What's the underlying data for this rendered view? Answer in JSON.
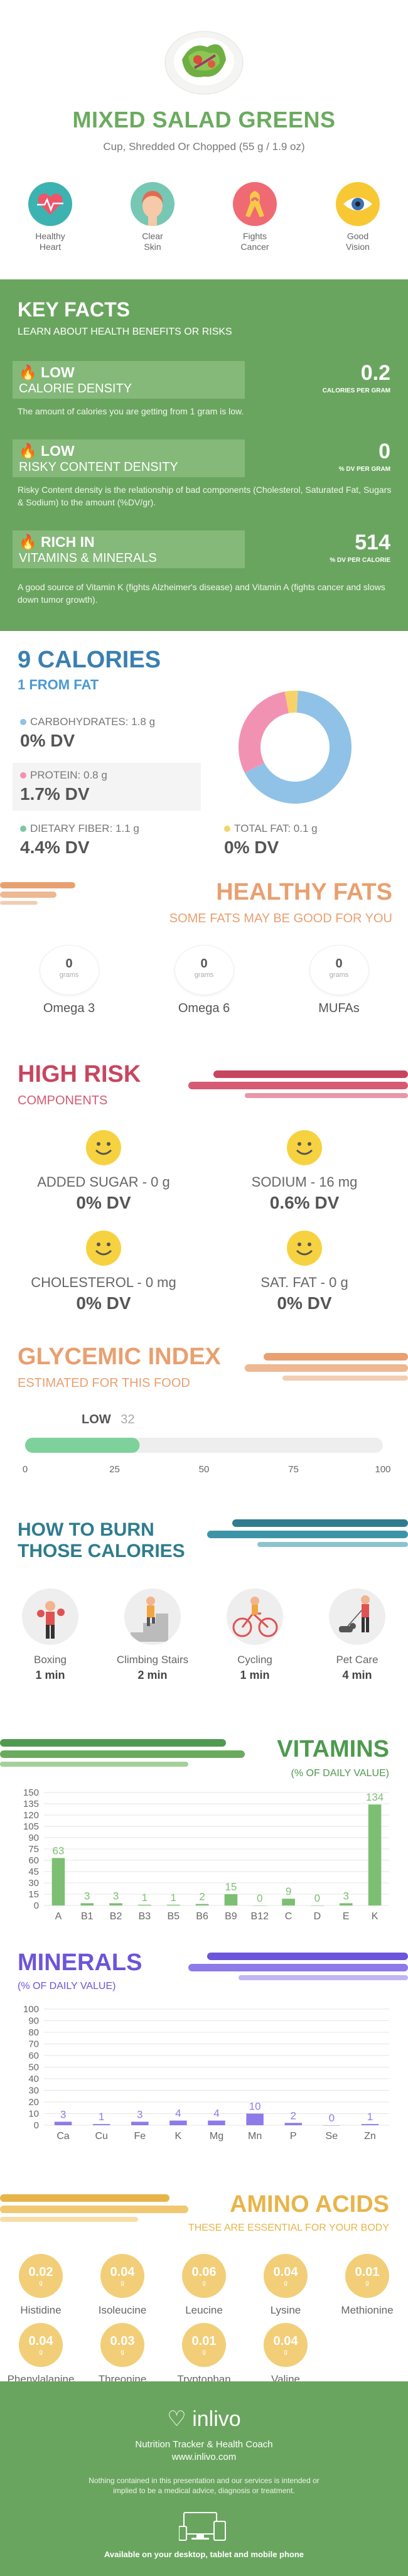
{
  "header": {
    "title": "MIXED SALAD GREENS",
    "subtitle": "Cup, Shredded Or Chopped (55 g / 1.9 oz)"
  },
  "benefits": [
    {
      "line1": "Healthy",
      "line2": "Heart",
      "icon": "heart-pulse-icon",
      "color": "#3cb3b0"
    },
    {
      "line1": "Clear",
      "line2": "Skin",
      "icon": "face-icon",
      "color": "#76c7b3"
    },
    {
      "line1": "Fights",
      "line2": "Cancer",
      "icon": "ribbon-icon",
      "color": "#f06a73"
    },
    {
      "line1": "Good",
      "line2": "Vision",
      "icon": "eye-icon",
      "color": "#f7c833"
    }
  ],
  "key_facts": {
    "title": "KEY FACTS",
    "subtitle": "LEARN ABOUT HEALTH BENEFITS OR RISKS",
    "items": [
      {
        "level": "LOW",
        "name": "CALORIE DENSITY",
        "value": "0.2",
        "value_label": "CALORIES PER GRAM",
        "desc": "The amount of calories you are getting from 1 gram is low."
      },
      {
        "level": "LOW",
        "name": "RISKY CONTENT DENSITY",
        "value": "0",
        "value_label": "% DV PER GRAM",
        "desc": "Risky Content density is the relationship of bad components (Cholesterol, Saturated Fat, Sugars & Sodium) to the amount (%DV/gr)."
      },
      {
        "level": "RICH IN",
        "name": "VITAMINS & MINERALS",
        "value": "514",
        "value_label": "% DV PER CALORIE",
        "desc": "A good source of Vitamin K (fights Alzheimer's disease) and Vitamin A (fights cancer and slows down tumor growth)."
      }
    ]
  },
  "calories": {
    "title": "9 CALORIES",
    "subtitle": "1 FROM FAT",
    "nutrients": [
      {
        "label": "CARBOHYDRATES: 1.8 g",
        "dv": "0% DV",
        "color": "#8fc2e6"
      },
      {
        "label": "PROTEIN: 0.8 g",
        "dv": "1.7% DV",
        "color": "#f292b3"
      },
      {
        "label": "DIETARY FIBER: 1.1 g",
        "dv": "4.4% DV",
        "color": "#7cc6a4"
      },
      {
        "label": "TOTAL FAT: 0.1 g",
        "dv": "0% DV",
        "color": "#f6d36a"
      }
    ],
    "donut": [
      {
        "name": "carbohydrates",
        "value": 1.8,
        "color": "#8fc2e6"
      },
      {
        "name": "protein",
        "value": 0.8,
        "color": "#f292b3"
      },
      {
        "name": "fat",
        "value": 0.1,
        "color": "#f6d36a"
      }
    ]
  },
  "healthy_fats": {
    "title": "HEALTHY FATS",
    "subtitle": "SOME FATS MAY BE GOOD FOR YOU",
    "unit": "grams",
    "items": [
      {
        "name": "Omega 3",
        "value": "0"
      },
      {
        "name": "Omega 6",
        "value": "0"
      },
      {
        "name": "MUFAs",
        "value": "0"
      }
    ]
  },
  "high_risk": {
    "title": "HIGH RISK",
    "subtitle": "COMPONENTS",
    "items": [
      {
        "label": "ADDED SUGAR - 0 g",
        "dv": "0% DV"
      },
      {
        "label": "SODIUM - 16 mg",
        "dv": "0.6% DV"
      },
      {
        "label": "CHOLESTEROL - 0 mg",
        "dv": "0% DV"
      },
      {
        "label": "SAT. FAT - 0 g",
        "dv": "0% DV"
      }
    ]
  },
  "glycemic": {
    "title": "GLYCEMIC INDEX",
    "subtitle": "ESTIMATED FOR THIS FOOD",
    "level": "LOW",
    "value": 32,
    "value_text": "32",
    "ticks": [
      "0",
      "25",
      "50",
      "75",
      "100"
    ]
  },
  "burn": {
    "title_line1": "HOW TO BURN",
    "title_line2": "THOSE CALORIES",
    "activities": [
      {
        "name": "Boxing",
        "time": "1 min",
        "icon": "boxing-icon"
      },
      {
        "name": "Climbing Stairs",
        "time": "2 min",
        "icon": "stairs-icon"
      },
      {
        "name": "Cycling",
        "time": "1 min",
        "icon": "bicycle-icon"
      },
      {
        "name": "Pet Care",
        "time": "4 min",
        "icon": "dog-walking-icon"
      }
    ]
  },
  "vitamins": {
    "title": "VITAMINS",
    "subtitle": "(% OF DAILY VALUE)"
  },
  "minerals": {
    "title": "MINERALS",
    "subtitle": "(% OF DAILY VALUE)"
  },
  "amino": {
    "title": "AMINO ACIDS",
    "subtitle": "THESE ARE ESSENTIAL FOR YOUR BODY",
    "unit": "g",
    "items": [
      {
        "name": "Histidine",
        "value": "0.02"
      },
      {
        "name": "Isoleucine",
        "value": "0.04"
      },
      {
        "name": "Leucine",
        "value": "0.06"
      },
      {
        "name": "Lysine",
        "value": "0.04"
      },
      {
        "name": "Methionine",
        "value": "0.01"
      },
      {
        "name": "Phenylalanine",
        "value": "0.04"
      },
      {
        "name": "Threonine",
        "value": "0.03"
      },
      {
        "name": "Tryptophan",
        "value": "0.01"
      },
      {
        "name": "Valine",
        "value": "0.04"
      }
    ]
  },
  "footer": {
    "brand": "inlivo",
    "tagline": "Nutrition Tracker & Health Coach",
    "site": "www.inlivo.com",
    "disclaimer": "Nothing contained in this presentation and our services is intended or implied to be a medical advice, diagnosis or treatment.",
    "available": "Available on your desktop, tablet and mobile phone"
  },
  "chart_data": [
    {
      "type": "bar",
      "categories": [
        "A",
        "B1",
        "B2",
        "B3",
        "B5",
        "B6",
        "B9",
        "B12",
        "C",
        "D",
        "E",
        "K"
      ],
      "values": [
        63,
        3,
        3,
        1,
        1,
        2,
        15,
        0,
        9,
        0,
        3,
        134
      ],
      "title": "VITAMINS",
      "ylim": [
        0,
        150
      ],
      "yticks": [
        0,
        15,
        30,
        45,
        60,
        75,
        90,
        105,
        120,
        135,
        150
      ],
      "grid": true,
      "color": "#7cbf72"
    },
    {
      "type": "bar",
      "categories": [
        "Ca",
        "Cu",
        "Fe",
        "K",
        "Mg",
        "Mn",
        "P",
        "Se",
        "Zn"
      ],
      "values": [
        3,
        1,
        3,
        4,
        4,
        10,
        2,
        0,
        1
      ],
      "title": "MINERALS",
      "ylim": [
        0,
        100
      ],
      "yticks": [
        0,
        10,
        20,
        30,
        40,
        50,
        60,
        70,
        80,
        90,
        100
      ],
      "grid": true,
      "color": "#8e7ae8"
    }
  ]
}
